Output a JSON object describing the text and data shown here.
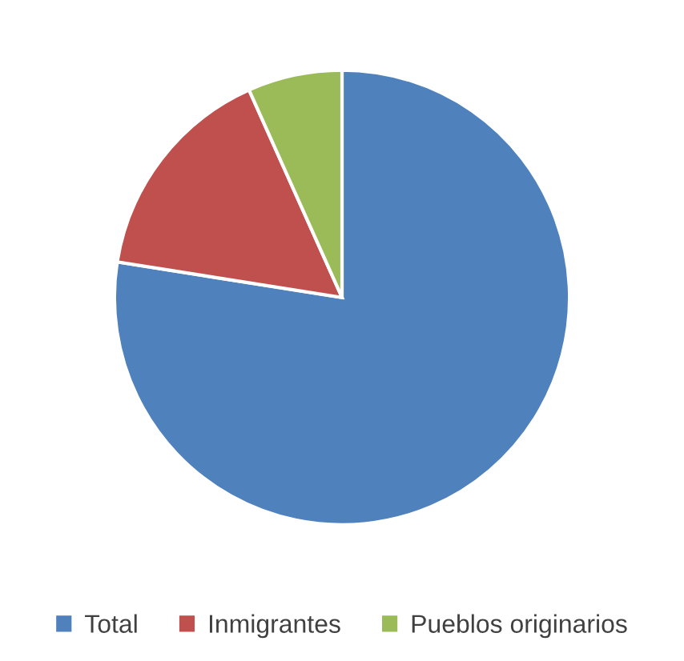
{
  "chart_data": {
    "type": "pie",
    "categories": [
      "Total",
      "Inmigrantes",
      "Pueblos originarios"
    ],
    "values": [
      77.5,
      15.8,
      6.7
    ],
    "colors": [
      "#4f81bd",
      "#c0504d",
      "#9bbb59"
    ],
    "legend": "bottom"
  }
}
